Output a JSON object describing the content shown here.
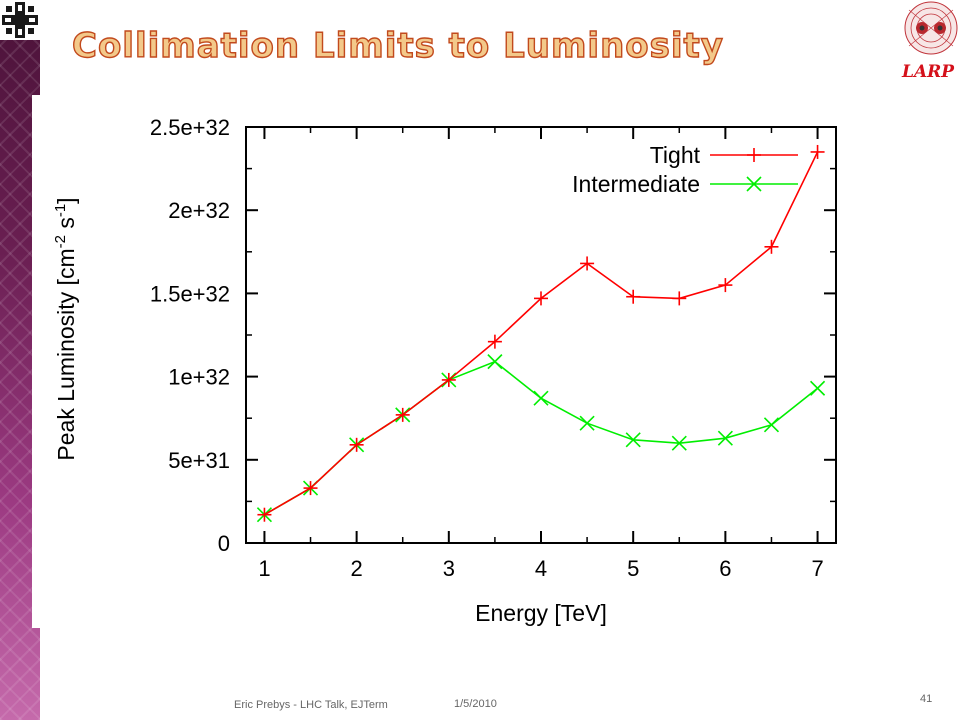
{
  "slide": {
    "title": "Collimation Limits to Luminosity",
    "larp_logo_text": "LARP",
    "footer_author": "Eric Prebys - LHC Talk, EJTerm",
    "footer_date": "1/5/2010",
    "page_number": "41"
  },
  "icons": {
    "top_left": "fermilab-logo-icon",
    "top_right": "larp-magnet-logo-icon"
  },
  "chart_data": {
    "type": "line",
    "title": "",
    "xlabel": "Energy [TeV]",
    "ylabel": "Peak Luminosity [cm-2 s-1]",
    "ylabel_base": "Peak Luminosity [cm",
    "ylabel_exp1": "-2",
    "ylabel_mid": " s",
    "ylabel_exp2": "-1",
    "ylabel_end": "]",
    "xlim": [
      0.8,
      7.2
    ],
    "ylim": [
      0,
      2.5e+32
    ],
    "xticks": [
      1,
      2,
      3,
      4,
      5,
      6,
      7
    ],
    "xtick_labels": [
      "1",
      "2",
      "3",
      "4",
      "5",
      "6",
      "7"
    ],
    "yticks": [
      0,
      5e+31,
      1e+32,
      1.5e+32,
      2e+32,
      2.5e+32
    ],
    "ytick_labels": [
      "0",
      "5e+31",
      "1e+32",
      "1.5e+32",
      "2e+32",
      "2.5e+32"
    ],
    "grid": false,
    "legend_position": "top-right",
    "x": [
      1,
      1.5,
      2,
      2.5,
      3,
      3.5,
      4,
      4.5,
      5,
      5.5,
      6,
      6.5,
      7
    ],
    "series": [
      {
        "name": "Tight",
        "color": "#ff0000",
        "marker": "plus",
        "values": [
          1.7e+31,
          3.3e+31,
          5.9e+31,
          7.7e+31,
          9.8e+31,
          1.21e+32,
          1.47e+32,
          1.68e+32,
          1.48e+32,
          1.47e+32,
          1.55e+32,
          1.78e+32,
          2.35e+32
        ]
      },
      {
        "name": "Intermediate",
        "color": "#00ee00",
        "marker": "cross",
        "values": [
          1.7e+31,
          3.3e+31,
          5.9e+31,
          7.7e+31,
          9.8e+31,
          1.09e+32,
          8.7e+31,
          7.2e+31,
          6.2e+31,
          6e+31,
          6.3e+31,
          7.1e+31,
          9.3e+31
        ]
      }
    ]
  }
}
